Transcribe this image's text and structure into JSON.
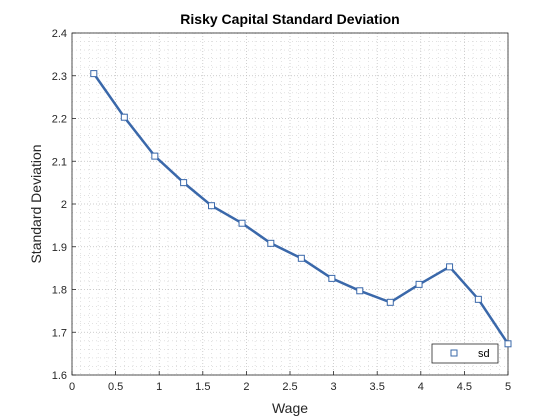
{
  "chart_data": {
    "type": "line",
    "title": "Risky Capital Standard Deviation",
    "xlabel": "Wage",
    "ylabel": "Standard Deviation",
    "xlim": [
      0,
      5
    ],
    "ylim": [
      1.6,
      2.4
    ],
    "xticks": [
      "0",
      "0.5",
      "1",
      "1.5",
      "2",
      "2.5",
      "3",
      "3.5",
      "4",
      "4.5",
      "5"
    ],
    "yticks": [
      "1.6",
      "1.7",
      "1.8",
      "1.9",
      "2",
      "2.1",
      "2.2",
      "2.3",
      "2.4"
    ],
    "grid": "major and minor, dotted",
    "legend_placement": "bottom-right",
    "series": [
      {
        "name": "sd",
        "color": "#3A68AA",
        "marker": "square",
        "x": [
          0.25,
          0.6,
          0.95,
          1.28,
          1.6,
          1.95,
          2.28,
          2.63,
          2.98,
          3.3,
          3.65,
          3.98,
          4.33,
          4.66,
          5.0
        ],
        "y": [
          2.305,
          2.203,
          2.112,
          2.05,
          1.996,
          1.955,
          1.908,
          1.873,
          1.826,
          1.797,
          1.77,
          1.812,
          1.853,
          1.777,
          1.673
        ]
      }
    ]
  }
}
